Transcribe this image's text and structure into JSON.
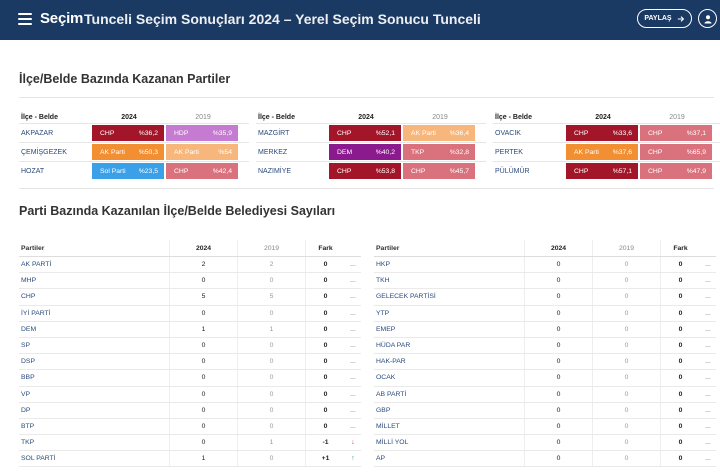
{
  "header": {
    "brand": "Seçim",
    "title": "Tunceli Seçim Sonuçları 2024 – Yerel Seçim Sonucu Tunceli",
    "share_label": "PAYLAŞ"
  },
  "district_section": {
    "title": "İlçe/Belde Bazında Kazanan Partiler",
    "col_name": "İlçe - Belde",
    "col_2024": "2024",
    "col_2019": "2019",
    "blocks": [
      [
        {
          "name": "AKPAZAR",
          "p24": "CHP",
          "v24": "%36,2",
          "c24": "#a3162a",
          "p19": "HDP",
          "v19": "%35,9",
          "c19": "#c57bd1"
        },
        {
          "name": "ÇEMİŞGEZEK",
          "p24": "AK Parti",
          "v24": "%50,3",
          "c24": "#f28f33",
          "p19": "AK Parti",
          "v19": "%54",
          "c19": "#f7b77c"
        },
        {
          "name": "HOZAT",
          "p24": "Sol Parti",
          "v24": "%23,5",
          "c24": "#3aa0e8",
          "p19": "CHP",
          "v19": "%42,4",
          "c19": "#d9727d"
        }
      ],
      [
        {
          "name": "MAZGİRT",
          "p24": "CHP",
          "v24": "%52,1",
          "c24": "#a3162a",
          "p19": "AK Parti",
          "v19": "%36,4",
          "c19": "#f7b77c"
        },
        {
          "name": "MERKEZ",
          "p24": "DEM",
          "v24": "%40,2",
          "c24": "#8b1a8f",
          "p19": "TKP",
          "v19": "%32,8",
          "c19": "#d9727d"
        },
        {
          "name": "NAZIMİYE",
          "p24": "CHP",
          "v24": "%53,8",
          "c24": "#a3162a",
          "p19": "CHP",
          "v19": "%45,7",
          "c19": "#d9727d"
        }
      ],
      [
        {
          "name": "OVACIK",
          "p24": "CHP",
          "v24": "%33,6",
          "c24": "#a3162a",
          "p19": "CHP",
          "v19": "%37,1",
          "c19": "#d9727d"
        },
        {
          "name": "PERTEK",
          "p24": "AK Parti",
          "v24": "%37,6",
          "c24": "#f28f33",
          "p19": "CHP",
          "v19": "%65,9",
          "c19": "#d9727d"
        },
        {
          "name": "PÜLÜMÜR",
          "p24": "CHP",
          "v24": "%57,1",
          "c24": "#a3162a",
          "p19": "CHP",
          "v19": "%47,9",
          "c19": "#d9727d"
        }
      ]
    ]
  },
  "party_section": {
    "title": "Parti Bazında Kazanılan İlçe/Belde Belediyesi Sayıları",
    "col_party": "Partiler",
    "col_2024": "2024",
    "col_2019": "2019",
    "col_fark": "Fark",
    "left": [
      {
        "name": "AK PARTİ",
        "v24": "2",
        "v19": "2",
        "fark": "0",
        "trend": "..."
      },
      {
        "name": "MHP",
        "v24": "0",
        "v19": "0",
        "fark": "0",
        "trend": "..."
      },
      {
        "name": "CHP",
        "v24": "5",
        "v19": "5",
        "fark": "0",
        "trend": "..."
      },
      {
        "name": "İYİ PARTİ",
        "v24": "0",
        "v19": "0",
        "fark": "0",
        "trend": "..."
      },
      {
        "name": "DEM",
        "v24": "1",
        "v19": "1",
        "fark": "0",
        "trend": "..."
      },
      {
        "name": "SP",
        "v24": "0",
        "v19": "0",
        "fark": "0",
        "trend": "..."
      },
      {
        "name": "DSP",
        "v24": "0",
        "v19": "0",
        "fark": "0",
        "trend": "..."
      },
      {
        "name": "BBP",
        "v24": "0",
        "v19": "0",
        "fark": "0",
        "trend": "..."
      },
      {
        "name": "VP",
        "v24": "0",
        "v19": "0",
        "fark": "0",
        "trend": "..."
      },
      {
        "name": "DP",
        "v24": "0",
        "v19": "0",
        "fark": "0",
        "trend": "..."
      },
      {
        "name": "BTP",
        "v24": "0",
        "v19": "0",
        "fark": "0",
        "trend": "..."
      },
      {
        "name": "TKP",
        "v24": "0",
        "v19": "1",
        "fark": "-1",
        "trend": "↓"
      },
      {
        "name": "SOL PARTİ",
        "v24": "1",
        "v19": "0",
        "fark": "+1",
        "trend": "↑"
      }
    ],
    "right": [
      {
        "name": "HKP",
        "v24": "0",
        "v19": "0",
        "fark": "0",
        "trend": "..."
      },
      {
        "name": "TKH",
        "v24": "0",
        "v19": "0",
        "fark": "0",
        "trend": "..."
      },
      {
        "name": "GELECEK PARTİSİ",
        "v24": "0",
        "v19": "0",
        "fark": "0",
        "trend": "..."
      },
      {
        "name": "YTP",
        "v24": "0",
        "v19": "0",
        "fark": "0",
        "trend": "..."
      },
      {
        "name": "EMEP",
        "v24": "0",
        "v19": "0",
        "fark": "0",
        "trend": "..."
      },
      {
        "name": "HÜDA PAR",
        "v24": "0",
        "v19": "0",
        "fark": "0",
        "trend": "..."
      },
      {
        "name": "HAK-PAR",
        "v24": "0",
        "v19": "0",
        "fark": "0",
        "trend": "..."
      },
      {
        "name": "OCAK",
        "v24": "0",
        "v19": "0",
        "fark": "0",
        "trend": "..."
      },
      {
        "name": "AB PARTİ",
        "v24": "0",
        "v19": "0",
        "fark": "0",
        "trend": "..."
      },
      {
        "name": "GBP",
        "v24": "0",
        "v19": "0",
        "fark": "0",
        "trend": "..."
      },
      {
        "name": "MİLLET",
        "v24": "0",
        "v19": "0",
        "fark": "0",
        "trend": "..."
      },
      {
        "name": "MİLLİ YOL",
        "v24": "0",
        "v19": "0",
        "fark": "0",
        "trend": "..."
      },
      {
        "name": "AP",
        "v24": "0",
        "v19": "0",
        "fark": "0",
        "trend": "..."
      }
    ]
  }
}
